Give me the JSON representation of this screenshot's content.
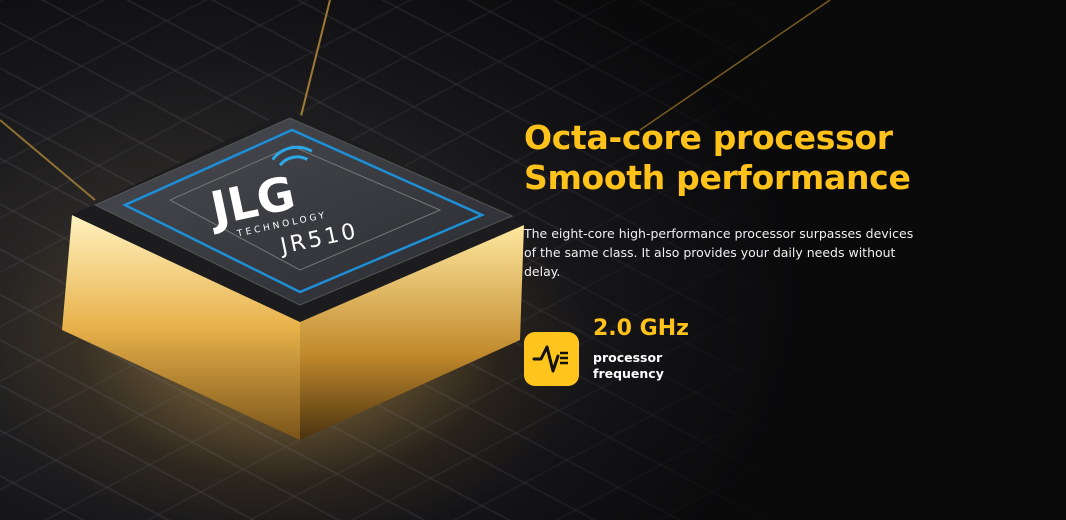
{
  "hero": {
    "title_line1": "Octa-core processor",
    "title_line2": "Smooth performance",
    "description": "The eight-core high-performance processor surpasses devices of the same class. It also provides your daily needs without delay."
  },
  "spec": {
    "value": "2.0 GHz",
    "label_line1": "processor",
    "label_line2": "frequency",
    "icon": "frequency-wave-icon"
  },
  "chip": {
    "logo": "JLG",
    "logo_sub": "TECHNOLOGY",
    "model": "JR510"
  },
  "colors": {
    "accent": "#ffc21a",
    "chip_ring": "#1e8fd6"
  }
}
